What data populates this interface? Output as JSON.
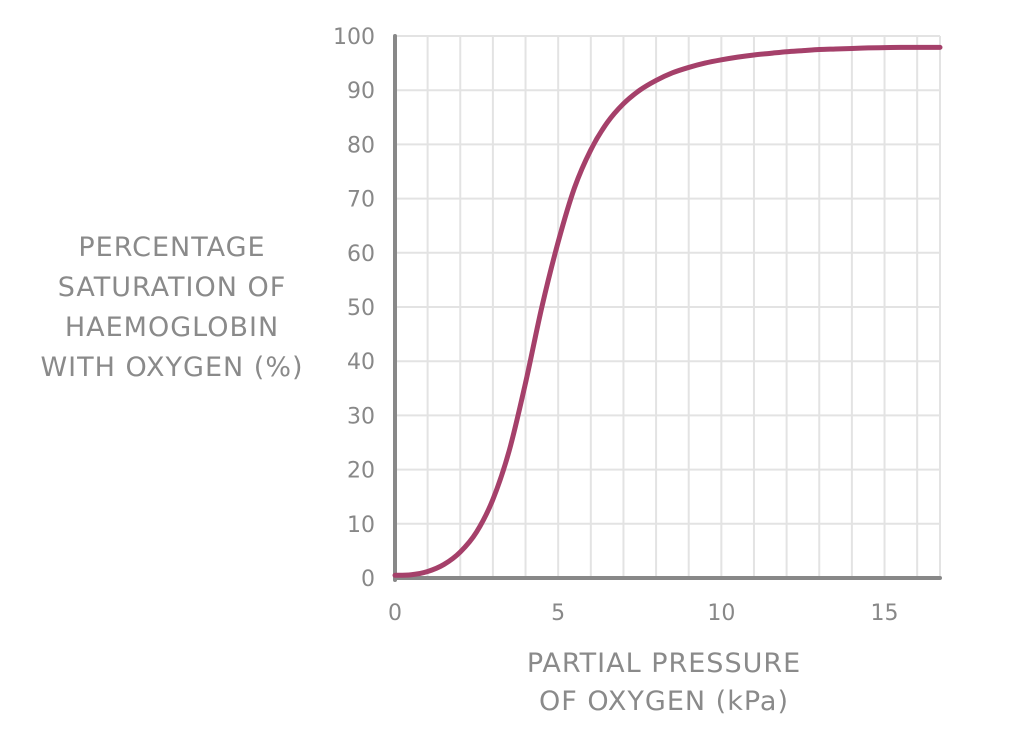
{
  "chart_data": {
    "type": "line",
    "title": "",
    "xlabel_lines": [
      "PARTIAL PRESSURE",
      "OF OXYGEN (kPa)"
    ],
    "ylabel_lines": [
      "PERCENTAGE",
      "SATURATION OF",
      "HAEMOGLOBIN",
      "WITH OXYGEN (%)"
    ],
    "xlim": [
      0,
      16.7
    ],
    "ylim": [
      0,
      100
    ],
    "x_ticks": [
      0,
      5,
      10,
      15
    ],
    "y_ticks": [
      0,
      10,
      20,
      30,
      40,
      50,
      60,
      70,
      80,
      90,
      100
    ],
    "grid": true,
    "series": [
      {
        "color": "#a5406a",
        "x": [
          0,
          0.5,
          1.0,
          1.5,
          2.0,
          2.5,
          3.0,
          3.5,
          4.0,
          4.5,
          5.0,
          5.5,
          6.0,
          6.5,
          7.0,
          7.5,
          8.0,
          8.5,
          9.0,
          9.5,
          10.0,
          10.5,
          11.0,
          11.5,
          12.0,
          12.5,
          13.0,
          13.5,
          14.0,
          14.5,
          15.0,
          15.5,
          16.0,
          16.7
        ],
        "y": [
          0.5,
          0.6,
          1.2,
          2.5,
          4.8,
          8.5,
          14.5,
          23.5,
          36,
          50,
          62,
          72,
          79,
          84,
          87.5,
          90,
          91.8,
          93.2,
          94.2,
          95,
          95.6,
          96.1,
          96.5,
          96.8,
          97.1,
          97.3,
          97.5,
          97.6,
          97.7,
          97.8,
          97.85,
          97.9,
          97.9,
          97.9
        ]
      }
    ]
  },
  "colors": {
    "axis": "#888888",
    "grid": "#e3e3e3",
    "curve": "#a5406a",
    "text": "#888888"
  }
}
